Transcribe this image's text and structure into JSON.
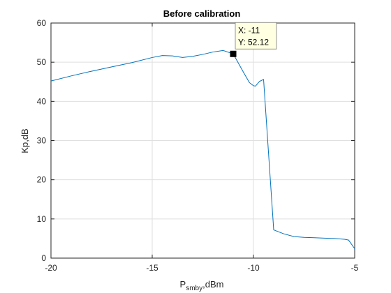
{
  "chart_data": {
    "type": "line",
    "title": "Before calibration",
    "xlabel_main": "P",
    "xlabel_sub": "smby",
    "xlabel_suffix": ",dBm",
    "ylabel": "Kp,dB",
    "xlim": [
      -20,
      -5
    ],
    "ylim": [
      0,
      60
    ],
    "x_ticks": [
      -20,
      -15,
      -10,
      -5
    ],
    "x_tick_labels": [
      "-20",
      "-15",
      "-10",
      "-5"
    ],
    "y_ticks": [
      0,
      10,
      20,
      30,
      40,
      50,
      60
    ],
    "y_tick_labels": [
      "0",
      "10",
      "20",
      "30",
      "40",
      "50",
      "60"
    ],
    "grid": true,
    "series": [
      {
        "color": "#0072bd",
        "x": [
          -20,
          -19,
          -18,
          -17,
          -16,
          -15,
          -14.5,
          -14,
          -13.5,
          -13,
          -12.5,
          -12,
          -11.5,
          -11,
          -10.9,
          -10.5,
          -10.2,
          -10.0,
          -9.9,
          -9.7,
          -9.5,
          -9.0,
          -8.5,
          -8.0,
          -7.5,
          -7.0,
          -6.5,
          -6.0,
          -5.5,
          -5.3,
          -5.0
        ],
        "y": [
          45.2,
          46.5,
          47.7,
          48.8,
          49.9,
          51.2,
          51.7,
          51.6,
          51.2,
          51.5,
          52.0,
          52.6,
          53.0,
          52.12,
          51.2,
          47.5,
          44.8,
          44.0,
          43.9,
          45.1,
          45.6,
          7.2,
          6.2,
          5.5,
          5.3,
          5.2,
          5.1,
          5.0,
          4.8,
          4.6,
          2.4
        ]
      }
    ],
    "datatip": {
      "x": -11,
      "y": 52.12,
      "x_text": "X: -11",
      "y_text": "Y: 52.12"
    }
  },
  "colors": {
    "line": "#0072bd",
    "grid": "#dfdfdf",
    "axes": "#262626",
    "tooltip_bg": "#ffffe1"
  }
}
